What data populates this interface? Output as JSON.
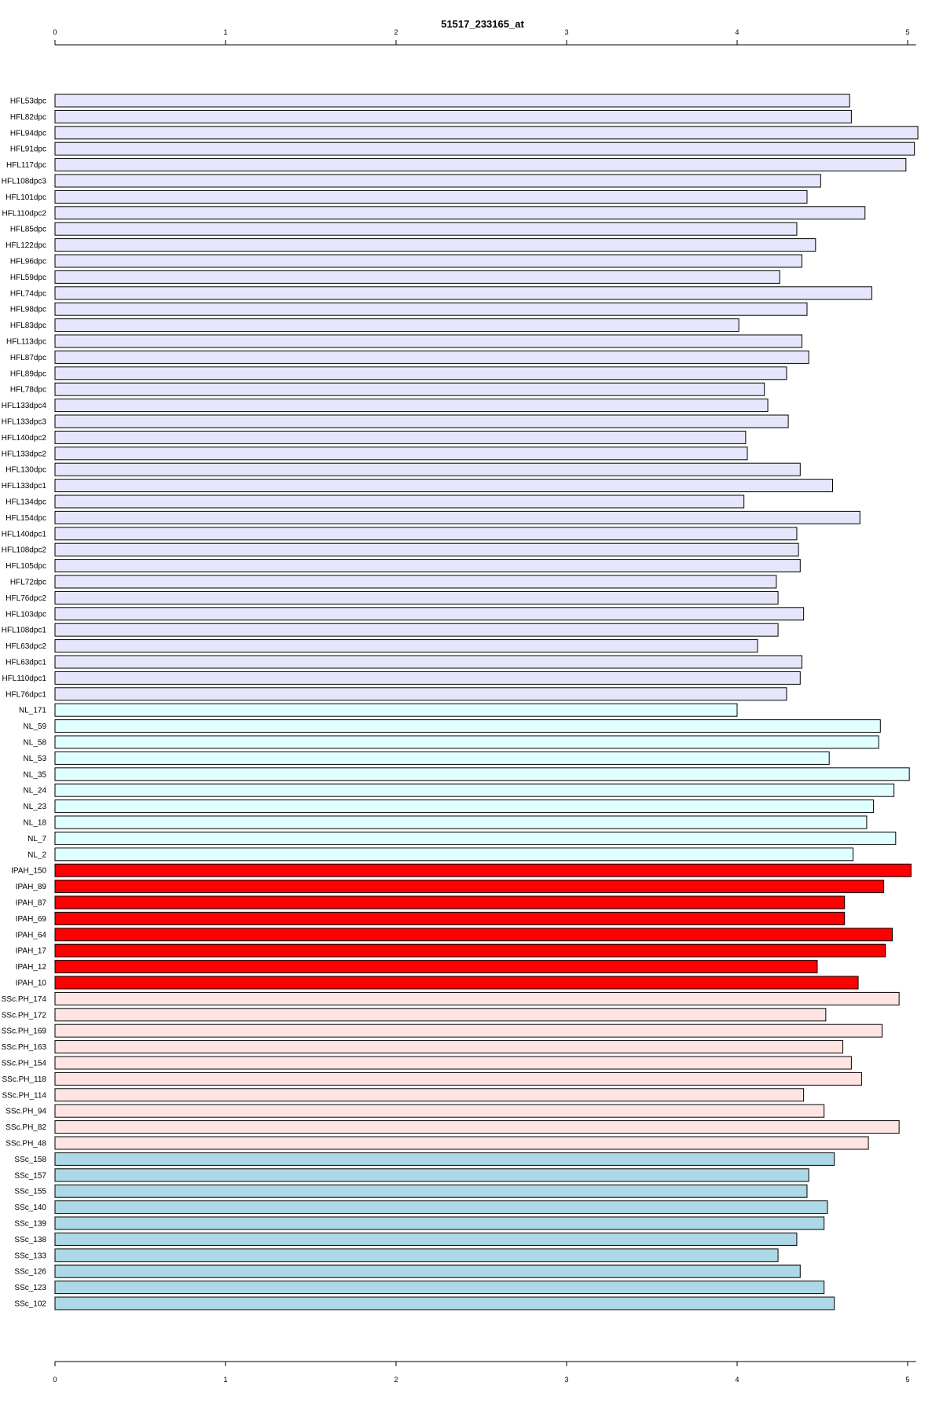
{
  "chart_data": {
    "type": "bar",
    "orientation": "horizontal",
    "title": "51517_233165_at",
    "xlabel": "",
    "ylabel": "",
    "xlim": [
      0,
      5.05
    ],
    "ticks": [
      "0",
      "1",
      "2",
      "3",
      "4",
      "5"
    ],
    "grid": false,
    "colors": {
      "HFL": "#e6e6fa",
      "NL": "#e0ffff",
      "IPAH": "#ff0000",
      "SSc.PH": "#ffe4e1",
      "SSc": "#add8e6"
    },
    "categories": [
      "HFL53dpc",
      "HFL82dpc",
      "HFL94dpc",
      "HFL91dpc",
      "HFL117dpc",
      "HFL108dpc3",
      "HFL101dpc",
      "HFL110dpc2",
      "HFL85dpc",
      "HFL122dpc",
      "HFL96dpc",
      "HFL59dpc",
      "HFL74dpc",
      "HFL98dpc",
      "HFL83dpc",
      "HFL113dpc",
      "HFL87dpc",
      "HFL89dpc",
      "HFL78dpc",
      "HFL133dpc4",
      "HFL133dpc3",
      "HFL140dpc2",
      "HFL133dpc2",
      "HFL130dpc",
      "HFL133dpc1",
      "HFL134dpc",
      "HFL154dpc",
      "HFL140dpc1",
      "HFL108dpc2",
      "HFL105dpc",
      "HFL72dpc",
      "HFL76dpc2",
      "HFL103dpc",
      "HFL108dpc1",
      "HFL63dpc2",
      "HFL63dpc1",
      "HFL110dpc1",
      "HFL76dpc1",
      "NL_171",
      "NL_59",
      "NL_58",
      "NL_53",
      "NL_35",
      "NL_24",
      "NL_23",
      "NL_18",
      "NL_7",
      "NL_2",
      "IPAH_150",
      "IPAH_89",
      "IPAH_87",
      "IPAH_69",
      "IPAH_64",
      "IPAH_17",
      "IPAH_12",
      "IPAH_10",
      "SSc.PH_174",
      "SSc.PH_172",
      "SSc.PH_169",
      "SSc.PH_163",
      "SSc.PH_154",
      "SSc.PH_118",
      "SSc.PH_114",
      "SSc.PH_94",
      "SSc.PH_82",
      "SSc.PH_48",
      "SSc_158",
      "SSc_157",
      "SSc_155",
      "SSc_140",
      "SSc_139",
      "SSc_138",
      "SSc_133",
      "SSc_126",
      "SSc_123",
      "SSc_102"
    ],
    "groups": [
      "HFL",
      "HFL",
      "HFL",
      "HFL",
      "HFL",
      "HFL",
      "HFL",
      "HFL",
      "HFL",
      "HFL",
      "HFL",
      "HFL",
      "HFL",
      "HFL",
      "HFL",
      "HFL",
      "HFL",
      "HFL",
      "HFL",
      "HFL",
      "HFL",
      "HFL",
      "HFL",
      "HFL",
      "HFL",
      "HFL",
      "HFL",
      "HFL",
      "HFL",
      "HFL",
      "HFL",
      "HFL",
      "HFL",
      "HFL",
      "HFL",
      "HFL",
      "HFL",
      "HFL",
      "NL",
      "NL",
      "NL",
      "NL",
      "NL",
      "NL",
      "NL",
      "NL",
      "NL",
      "NL",
      "IPAH",
      "IPAH",
      "IPAH",
      "IPAH",
      "IPAH",
      "IPAH",
      "IPAH",
      "IPAH",
      "SSc.PH",
      "SSc.PH",
      "SSc.PH",
      "SSc.PH",
      "SSc.PH",
      "SSc.PH",
      "SSc.PH",
      "SSc.PH",
      "SSc.PH",
      "SSc.PH",
      "SSc",
      "SSc",
      "SSc",
      "SSc",
      "SSc",
      "SSc",
      "SSc",
      "SSc",
      "SSc",
      "SSc"
    ],
    "values": [
      4.66,
      4.67,
      5.06,
      5.04,
      4.99,
      4.49,
      4.41,
      4.75,
      4.35,
      4.46,
      4.38,
      4.25,
      4.79,
      4.41,
      4.01,
      4.38,
      4.42,
      4.29,
      4.16,
      4.18,
      4.3,
      4.05,
      4.06,
      4.37,
      4.56,
      4.04,
      4.72,
      4.35,
      4.36,
      4.37,
      4.23,
      4.24,
      4.39,
      4.24,
      4.12,
      4.38,
      4.37,
      4.29,
      4.0,
      4.84,
      4.83,
      4.54,
      5.01,
      4.92,
      4.8,
      4.76,
      4.93,
      4.68,
      5.02,
      4.86,
      4.63,
      4.63,
      4.91,
      4.87,
      4.47,
      4.71,
      4.95,
      4.52,
      4.85,
      4.62,
      4.67,
      4.73,
      4.39,
      4.51,
      4.95,
      4.77,
      4.57,
      4.42,
      4.41,
      4.53,
      4.51,
      4.35,
      4.24,
      4.37,
      4.51,
      4.57
    ]
  }
}
